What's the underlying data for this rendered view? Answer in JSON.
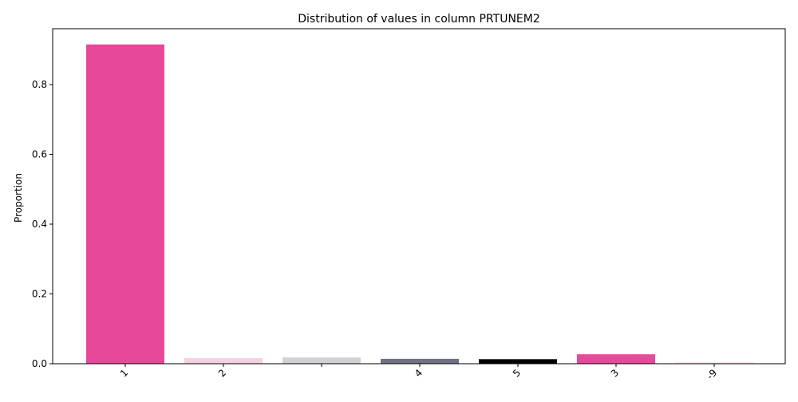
{
  "chart_data": {
    "type": "bar",
    "title": "Distribution of values in column PRTUNEM2",
    "xlabel": "",
    "ylabel": "Proportion",
    "categories": [
      "1",
      "2",
      "",
      "4",
      "5",
      "3",
      "-9"
    ],
    "values": [
      0.915,
      0.016,
      0.018,
      0.014,
      0.013,
      0.027,
      0.004
    ],
    "colors": [
      "#e8489a",
      "#f7d0e3",
      "#d0d2d6",
      "#6d7280",
      "#000000",
      "#e8489a",
      "#fbe0ee"
    ],
    "ylim": [
      0,
      0.96
    ],
    "yticks": [
      0.0,
      0.2,
      0.4,
      0.6,
      0.8
    ],
    "ytick_labels": [
      "0.0",
      "0.2",
      "0.4",
      "0.6",
      "0.8"
    ],
    "xtick_rotation": "45°",
    "grid": false,
    "legend": "none"
  }
}
